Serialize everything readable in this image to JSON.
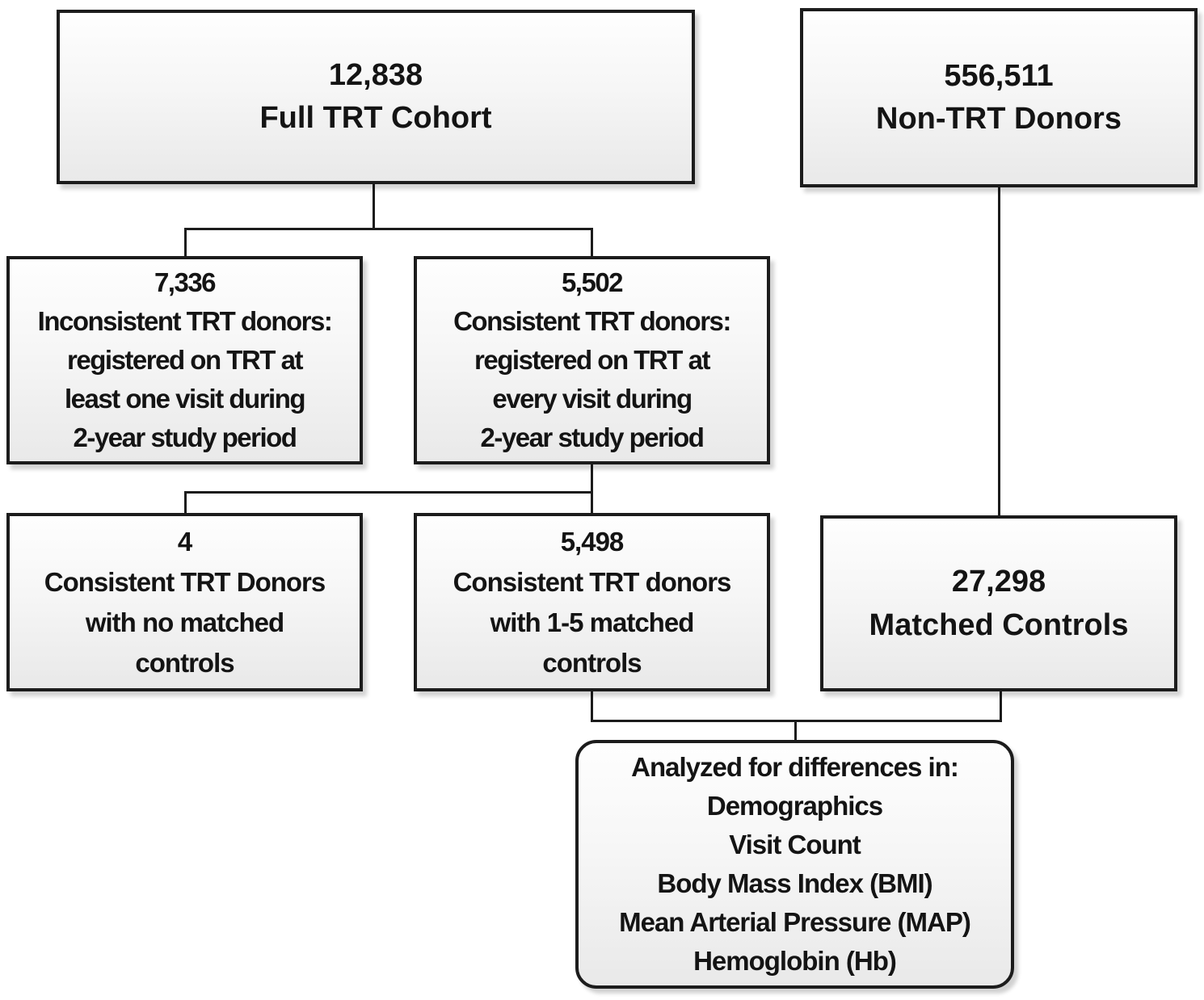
{
  "colors": {
    "background": "#ffffff",
    "box_border": "#1c1c1c",
    "box_fill_top": "#fefefe",
    "box_fill_bottom": "#e9e9e9",
    "connector": "#1c1c1c",
    "text": "#141414"
  },
  "boxes": {
    "full_trt": {
      "lines": [
        "12,838",
        "Full TRT Cohort"
      ]
    },
    "non_trt": {
      "lines": [
        "556,511",
        "Non-TRT Donors"
      ]
    },
    "inconsistent": {
      "lines": [
        "7,336",
        "Inconsistent TRT donors:",
        "registered on TRT at",
        "least one visit during",
        "2-year study period"
      ]
    },
    "consistent": {
      "lines": [
        "5,502",
        "Consistent TRT donors:",
        "registered on TRT at",
        "every visit during",
        "2-year study period"
      ]
    },
    "no_matched": {
      "lines": [
        "4",
        "Consistent TRT Donors",
        "with no matched",
        "controls"
      ]
    },
    "matched_1_5": {
      "lines": [
        "5,498",
        "Consistent TRT donors",
        "with 1-5 matched",
        "controls"
      ]
    },
    "matched_controls": {
      "lines": [
        "27,298",
        "Matched Controls"
      ]
    },
    "analyzed": {
      "lines": [
        "Analyzed for differences in:",
        "Demographics",
        "Visit Count",
        "Body Mass Index (BMI)",
        "Mean Arterial Pressure (MAP)",
        "Hemoglobin (Hb)"
      ]
    }
  }
}
